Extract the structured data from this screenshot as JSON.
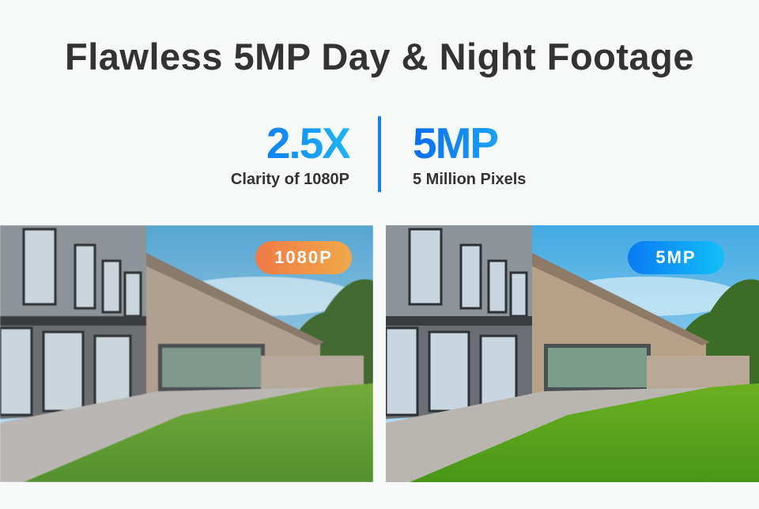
{
  "title": "Flawless 5MP Day & Night Footage",
  "stats": [
    {
      "value": "2.5X",
      "label": "Clarity of 1080P"
    },
    {
      "value": "5MP",
      "label": "5 Million Pixels"
    }
  ],
  "panels": [
    {
      "badge": "1080P",
      "badge_colors": [
        "#ef7a45",
        "#f0a94a"
      ]
    },
    {
      "badge": "5MP",
      "badge_colors": [
        "#0a7af5",
        "#12c0f7"
      ]
    }
  ],
  "accent_color": "#1a7ef0"
}
